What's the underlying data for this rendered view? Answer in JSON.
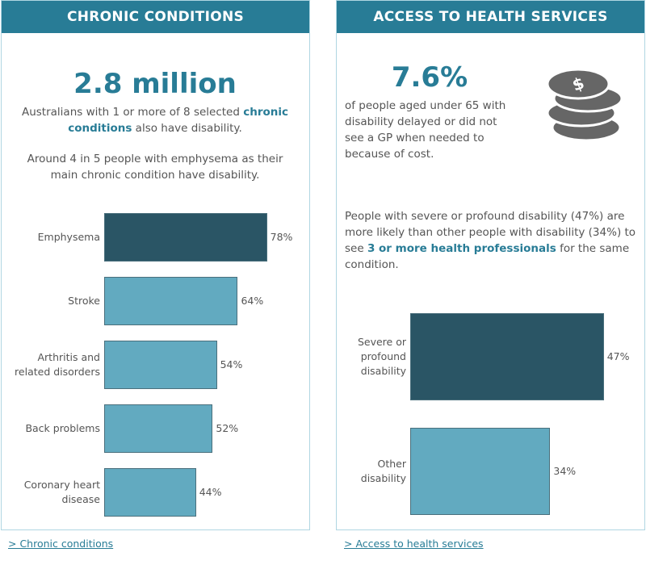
{
  "chronic": {
    "title": "CHRONIC CONDITIONS",
    "big_number": "2.8 million",
    "text1_pre": "Australians with 1 or more of 8 selected ",
    "text1_link": "chronic conditions",
    "text1_post": " also have disability.",
    "text2": "Around 4 in 5 people with emphysema as their main chronic condition have disability.",
    "chart_data": {
      "type": "bar",
      "orientation": "horizontal",
      "categories": [
        "Emphysema",
        "Stroke",
        "Arthritis and related disorders",
        "Back problems",
        "Coronary heart disease"
      ],
      "values": [
        78,
        64,
        54,
        52,
        44
      ],
      "labels": [
        "78%",
        "64%",
        "54%",
        "52%",
        "44%"
      ],
      "highlight_color": "#2a5565",
      "bar_color": "#62aac0"
    },
    "footer_link": ">  Chronic conditions"
  },
  "access": {
    "title": "ACCESS TO HEALTH SERVICES",
    "big_number": "7.6%",
    "text1": "of people aged under 65 with disability delayed or did not see a GP when needed to because of cost.",
    "icon": "coins-stack-icon",
    "text2_pre": "People with severe or profound disability (47%) are more likely than other people with disability (34%) to see ",
    "text2_link": "3 or more health professionals",
    "text2_post": " for the same condition.",
    "chart_data": {
      "type": "bar",
      "orientation": "horizontal",
      "categories": [
        "Severe or profound disability",
        "Other disability"
      ],
      "values": [
        47,
        34
      ],
      "labels": [
        "47%",
        "34%"
      ],
      "highlight_color": "#2a5565",
      "bar_color": "#62aac0"
    },
    "footer_link": ">  Access to health services"
  },
  "colors": {
    "header": "#287c96",
    "accent": "#287c96"
  }
}
